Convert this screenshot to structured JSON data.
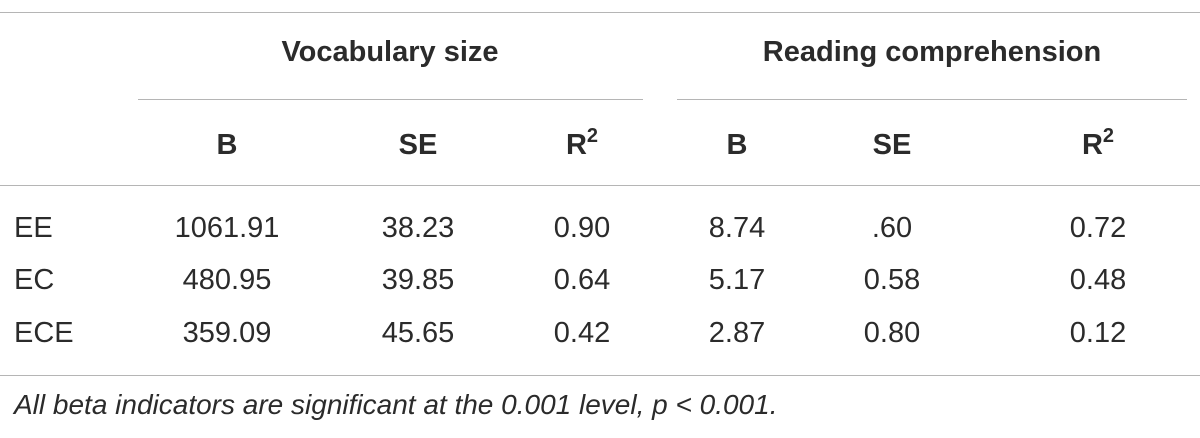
{
  "table": {
    "groups": [
      "Vocabulary size",
      "Reading comprehension"
    ],
    "columns": [
      {
        "text": "B"
      },
      {
        "text": "SE"
      },
      {
        "text": "R",
        "sup": "2"
      },
      {
        "text": "B"
      },
      {
        "text": "SE"
      },
      {
        "text": "R",
        "sup": "2"
      }
    ],
    "rows": [
      [
        "EE",
        "1061.91",
        "38.23",
        "0.90",
        "8.74",
        ".60",
        "0.72"
      ],
      [
        "EC",
        "480.95",
        "39.85",
        "0.64",
        "5.17",
        "0.58",
        "0.48"
      ],
      [
        "ECE",
        "359.09",
        "45.65",
        "0.42",
        "2.87",
        "0.80",
        "0.12"
      ]
    ],
    "footnote": "All beta indicators are significant at the 0.001 level, p < 0.001."
  }
}
